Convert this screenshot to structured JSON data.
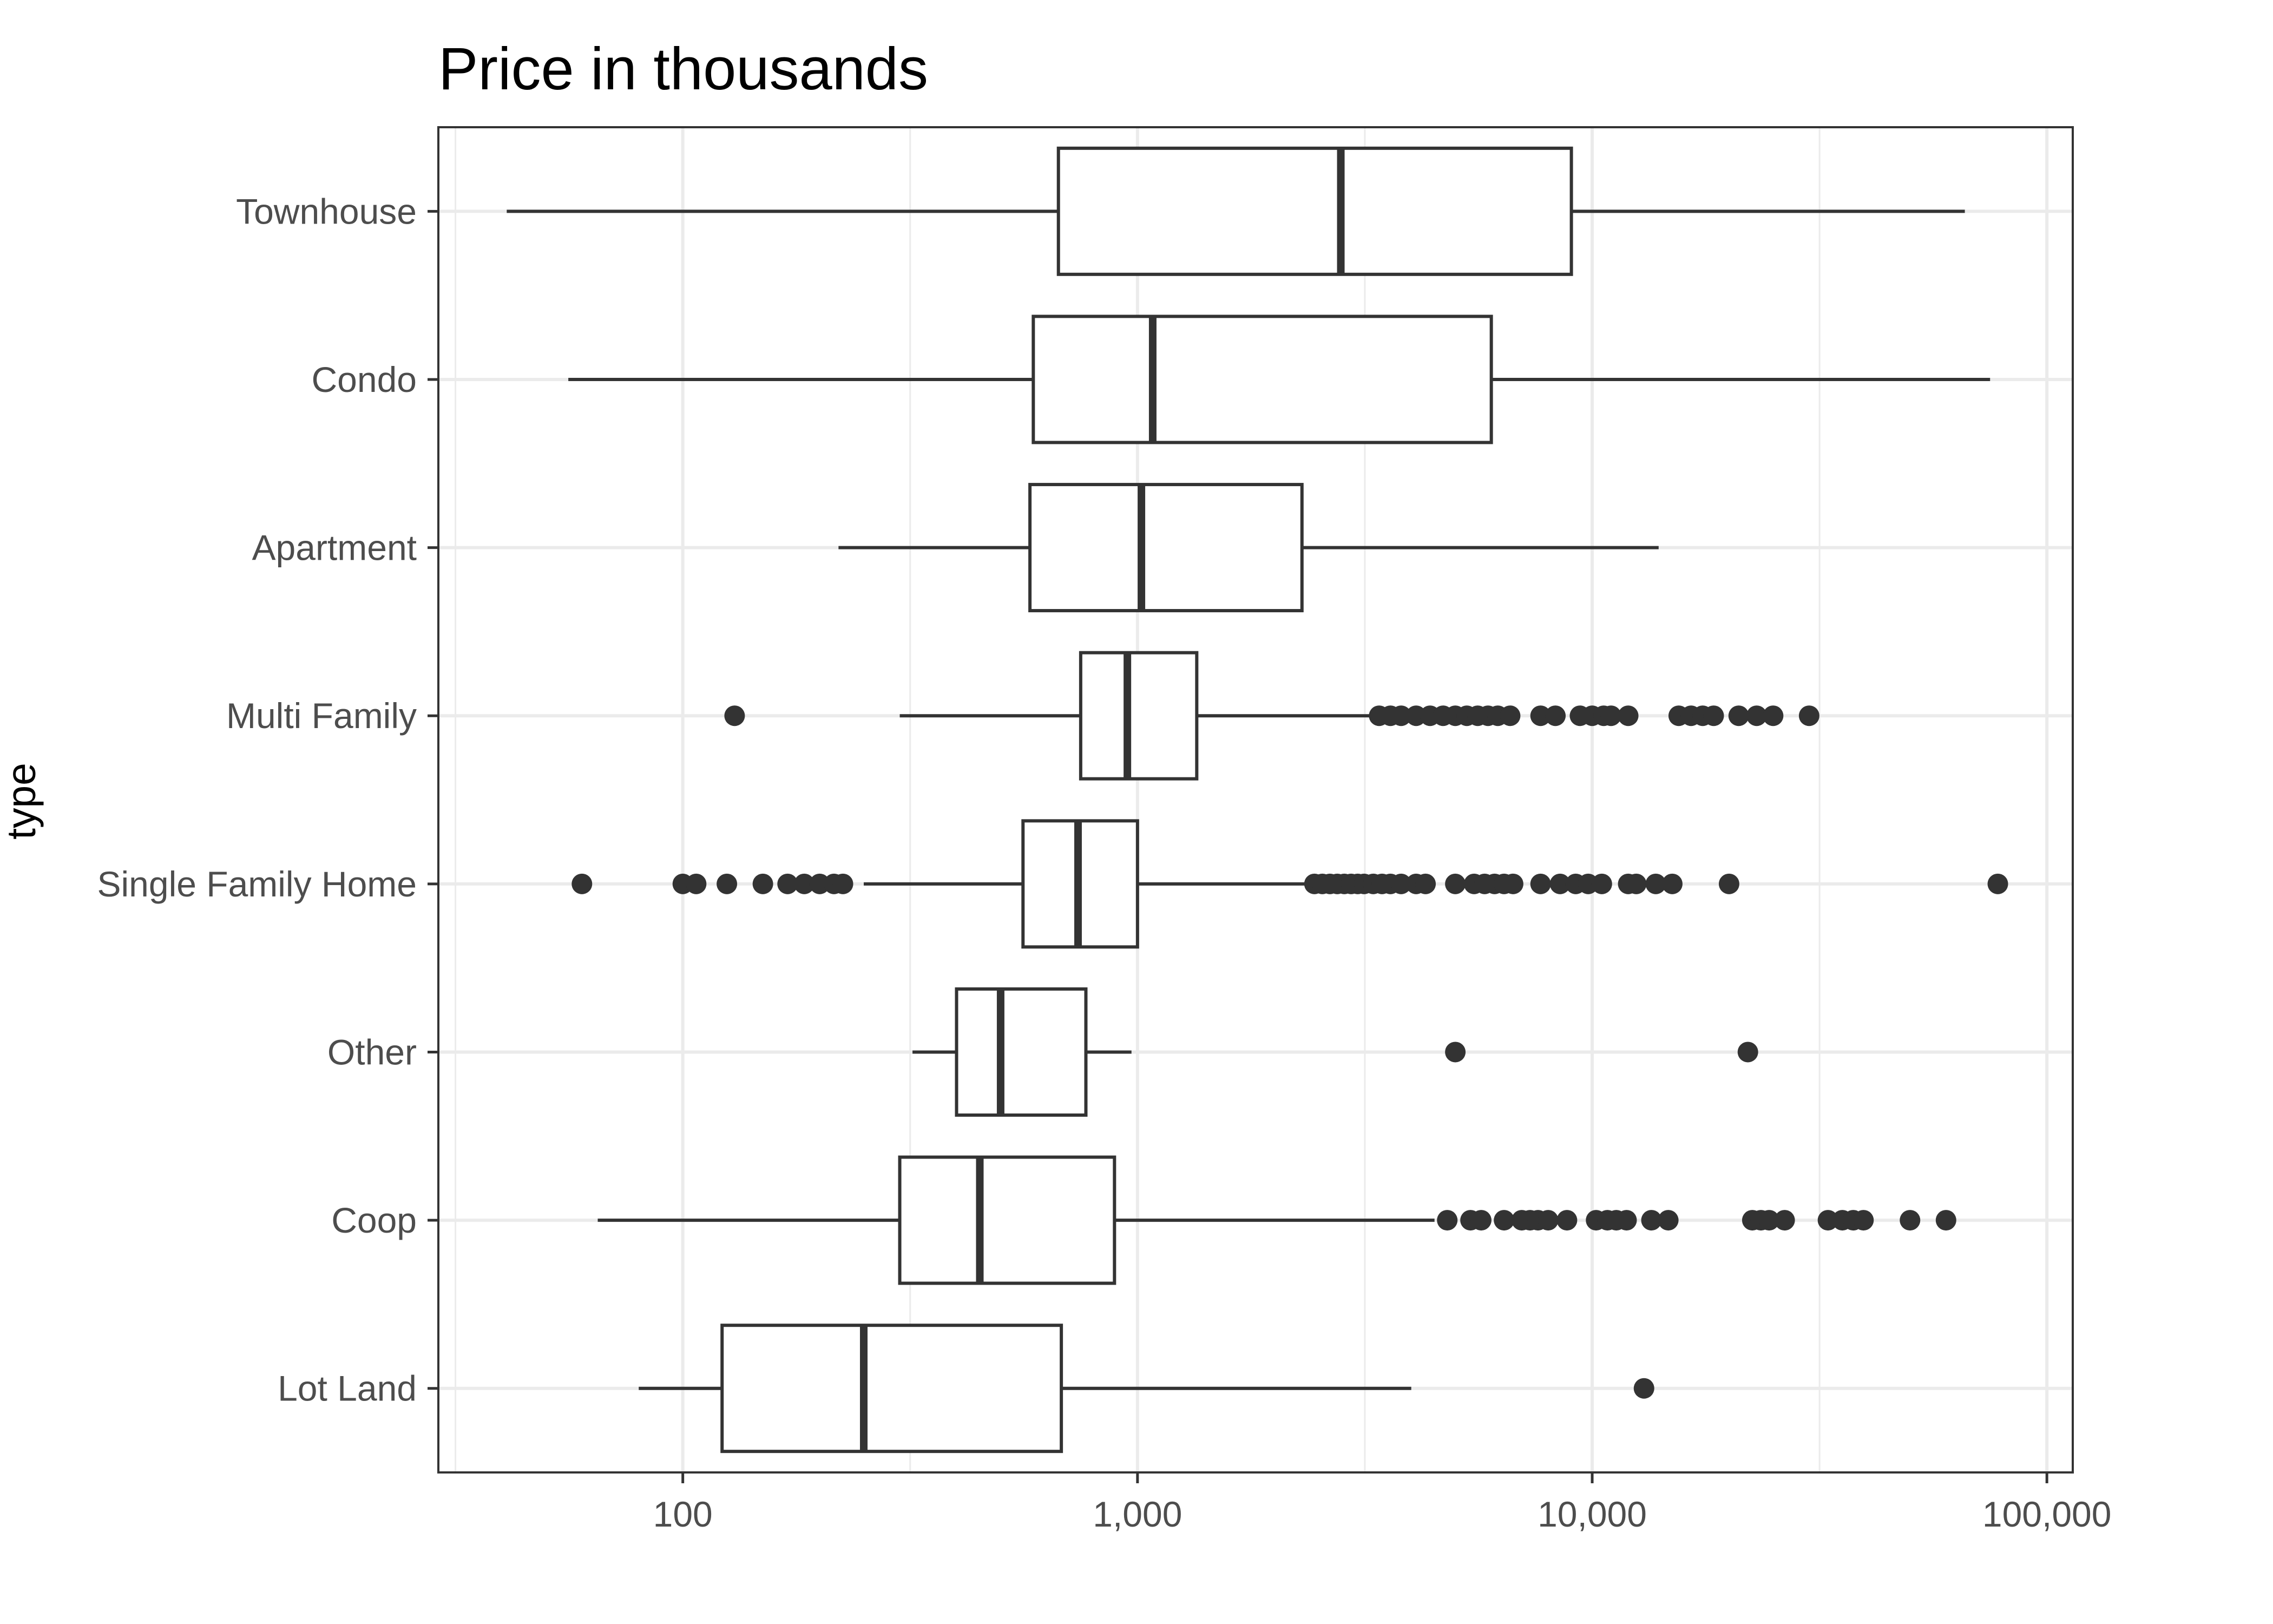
{
  "chart_data": {
    "type": "boxplot",
    "orientation": "horizontal",
    "title": "Price in thousands",
    "xlabel": "",
    "ylabel": "type",
    "x_scale": "log10",
    "xlim": [
      29,
      114000
    ],
    "x_ticks": [
      100,
      1000,
      10000,
      100000
    ],
    "x_tick_labels": [
      "100",
      "1,000",
      "10,000",
      "100,000"
    ],
    "grid": true,
    "legend": "none",
    "colors": {
      "box_stroke": "#333333",
      "box_fill": "#ffffff",
      "outlier": "#333333",
      "grid": "#ebebeb",
      "panel_border": "#333333"
    },
    "categories": [
      "Townhouse",
      "Condo",
      "Apartment",
      "Multi Family",
      "Single Family Home",
      "Other",
      "Coop",
      "Lot Land"
    ],
    "boxes": [
      {
        "category": "Townhouse",
        "whisker_low": 41,
        "q1": 670,
        "median": 2800,
        "q3": 9000,
        "whisker_high": 66000,
        "outliers": []
      },
      {
        "category": "Condo",
        "whisker_low": 56,
        "q1": 590,
        "median": 1080,
        "q3": 6000,
        "whisker_high": 75000,
        "outliers": []
      },
      {
        "category": "Apartment",
        "whisker_low": 220,
        "q1": 580,
        "median": 1020,
        "q3": 2300,
        "whisker_high": 14000,
        "outliers": []
      },
      {
        "category": "Multi Family",
        "whisker_low": 300,
        "q1": 750,
        "median": 950,
        "q3": 1350,
        "whisker_high": 3300,
        "outliers": [
          130,
          3400,
          3600,
          3800,
          4100,
          4400,
          4700,
          5000,
          5300,
          5600,
          5900,
          6200,
          6600,
          7700,
          8300,
          9400,
          10000,
          10600,
          11000,
          12000,
          15500,
          16500,
          17500,
          18500,
          21000,
          23000,
          25000,
          30000
        ]
      },
      {
        "category": "Single Family Home",
        "whisker_low": 250,
        "q1": 560,
        "median": 740,
        "q3": 1000,
        "whisker_high": 2400,
        "outliers": [
          60,
          100,
          107,
          125,
          150,
          170,
          185,
          200,
          215,
          225,
          2450,
          2550,
          2650,
          2750,
          2850,
          2950,
          3050,
          3150,
          3300,
          3450,
          3600,
          3800,
          4100,
          4300,
          5000,
          5500,
          5800,
          6100,
          6400,
          6700,
          7700,
          8500,
          9200,
          9800,
          10500,
          12000,
          12500,
          13800,
          15000,
          20000,
          78000
        ]
      },
      {
        "category": "Other",
        "whisker_low": 320,
        "q1": 400,
        "median": 500,
        "q3": 770,
        "whisker_high": 970,
        "outliers": [
          5000,
          22000
        ]
      },
      {
        "category": "Coop",
        "whisker_low": 65,
        "q1": 300,
        "median": 450,
        "q3": 890,
        "whisker_high": 4500,
        "outliers": [
          4800,
          5400,
          5700,
          6400,
          7000,
          7300,
          7600,
          8000,
          8800,
          10200,
          10800,
          11300,
          11900,
          13500,
          14700,
          22500,
          23500,
          24500,
          26500,
          33000,
          35500,
          37500,
          39500,
          50000,
          60000
        ]
      },
      {
        "category": "Lot Land",
        "whisker_low": 80,
        "q1": 122,
        "median": 250,
        "q3": 680,
        "whisker_high": 4000,
        "outliers": [
          13000
        ]
      }
    ]
  }
}
